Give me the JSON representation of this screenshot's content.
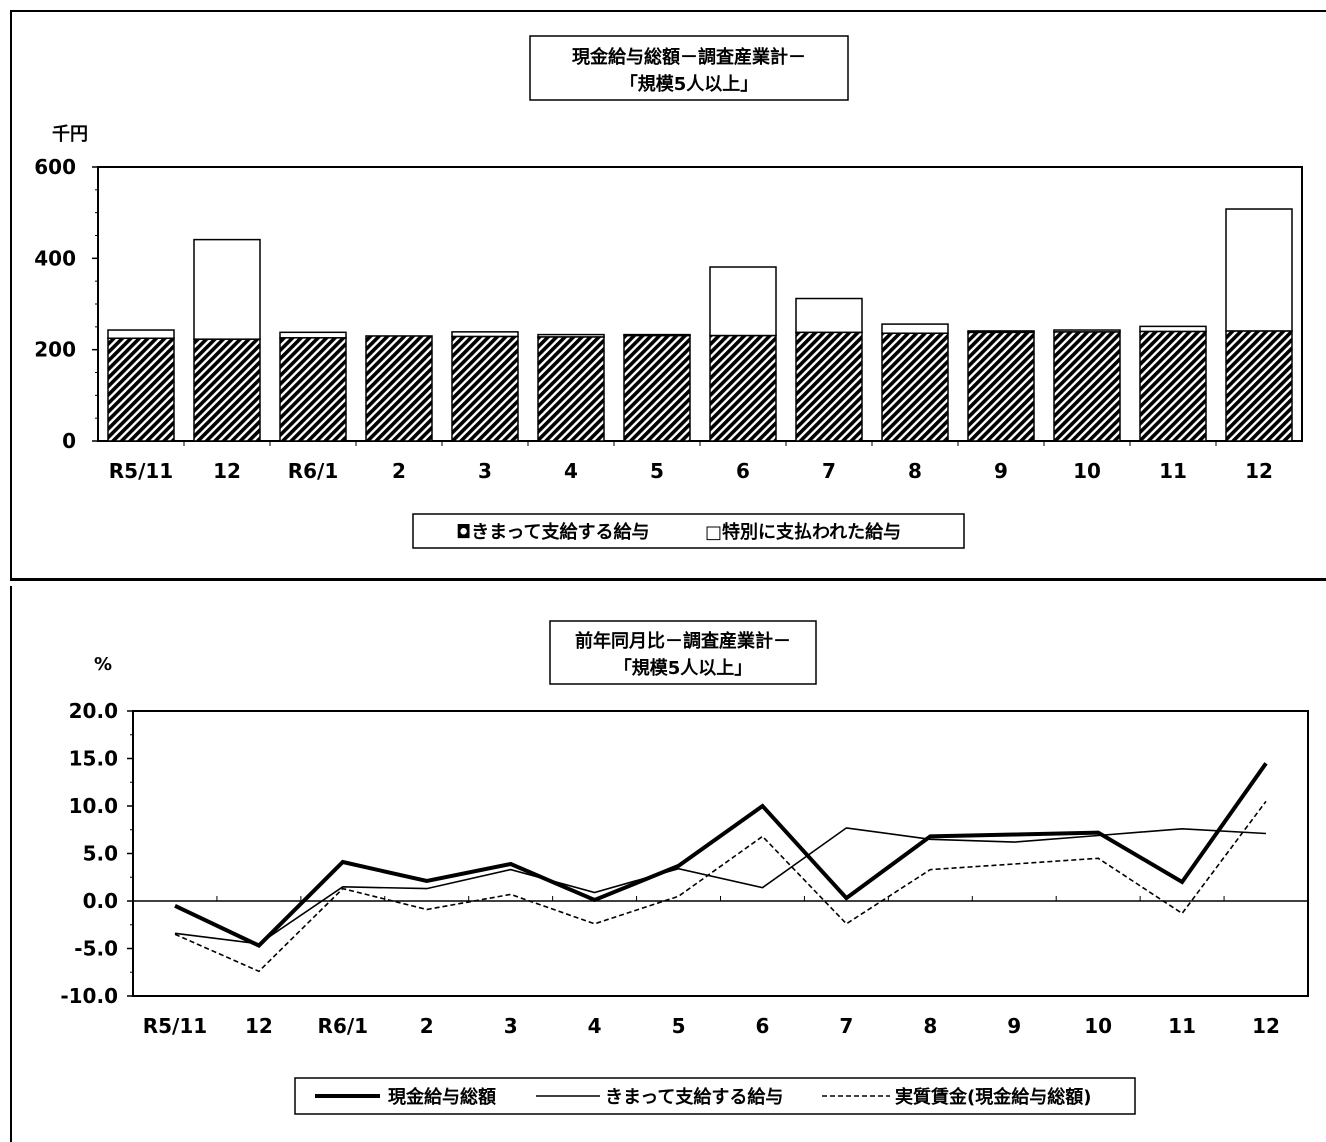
{
  "chart_data": [
    {
      "type": "bar",
      "title": [
        "現金給与総額－調査産業計－",
        "「規模5人以上」"
      ],
      "ylabel": "千円",
      "ylim": [
        0,
        600
      ],
      "yticks": [
        "600",
        "400",
        "200",
        "0"
      ],
      "yticks_values": [
        600,
        400,
        200,
        0
      ],
      "categories": [
        "R5/11",
        "12",
        "R6/1",
        "2",
        "3",
        "4",
        "5",
        "6",
        "7",
        "8",
        "9",
        "10",
        "11",
        "12"
      ],
      "stacked": true,
      "series": [
        {
          "name": "きまって支給する給与",
          "values": [
            225,
            223,
            226,
            230,
            229,
            228,
            231,
            231,
            238,
            236,
            238,
            239,
            240,
            241
          ],
          "pattern": "hatched"
        },
        {
          "name": "特別に支払われた給与",
          "values": [
            18,
            218,
            12,
            0,
            10,
            5,
            2,
            150,
            74,
            20,
            3,
            4,
            11,
            267
          ],
          "pattern": "white"
        }
      ],
      "legend_labels": [
        "◘きまって支給する給与",
        "□特別に支払われた給与"
      ],
      "legend_position": "bottom",
      "grid": false
    },
    {
      "type": "line",
      "title": [
        "前年同月比－調査産業計－",
        "「規模5人以上」"
      ],
      "ylabel": "%",
      "ylim": [
        -10,
        20
      ],
      "yticks": [
        "20.0",
        "15.0",
        "10.0",
        "5.0",
        "0.0",
        "-5.0",
        "-10.0"
      ],
      "yticks_values": [
        20,
        15,
        10,
        5,
        0,
        -5,
        -10
      ],
      "categories": [
        "R5/11",
        "12",
        "R6/1",
        "2",
        "3",
        "4",
        "5",
        "6",
        "7",
        "8",
        "9",
        "10",
        "11",
        "12"
      ],
      "series": [
        {
          "name": "現金給与総額",
          "values": [
            -0.5,
            -4.7,
            4.1,
            2.1,
            3.9,
            0.1,
            3.7,
            10.0,
            0.3,
            6.8,
            7.0,
            7.2,
            2.0,
            14.5
          ],
          "style": "thick"
        },
        {
          "name": "きまって支給する給与",
          "values": [
            -3.4,
            -4.5,
            1.5,
            1.3,
            3.3,
            0.9,
            3.4,
            1.4,
            7.7,
            6.5,
            6.2,
            6.9,
            7.6,
            7.1
          ],
          "style": "thin"
        },
        {
          "name": "実質賃金(現金給与総額)",
          "values": [
            -3.5,
            -7.4,
            1.3,
            -0.9,
            0.7,
            -2.4,
            0.5,
            6.8,
            -2.4,
            3.3,
            3.9,
            4.5,
            -1.3,
            10.5
          ],
          "style": "dashed"
        }
      ],
      "legend_labels": [
        "現金給与総額",
        "きまって支給する給与",
        "実質賃金(現金給与総額)"
      ],
      "legend_position": "bottom",
      "grid": false
    }
  ]
}
